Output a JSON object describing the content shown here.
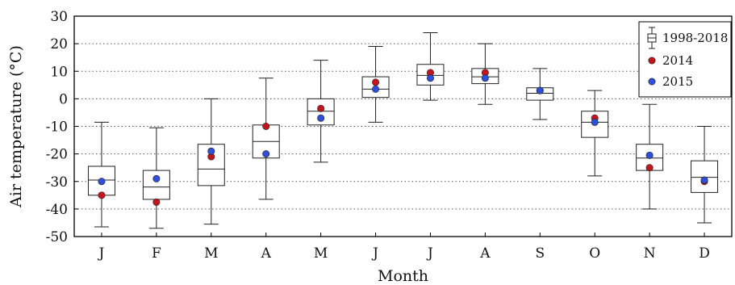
{
  "chart_data": {
    "type": "box",
    "title": "",
    "xlabel": "Month",
    "ylabel": "Air temperature (°C)",
    "ylim": [
      -50,
      30
    ],
    "yticks": [
      -50,
      -40,
      -30,
      -20,
      -10,
      0,
      10,
      20,
      30
    ],
    "grid": "horizontal dotted",
    "legend_position": "top-right",
    "categories": [
      "J",
      "F",
      "M",
      "A",
      "M",
      "J",
      "J",
      "A",
      "S",
      "O",
      "N",
      "D"
    ],
    "box_series": {
      "name": "1998-2018",
      "color": "#000000",
      "boxes": [
        {
          "min": -46.5,
          "q1": -35,
          "median": -29.5,
          "q3": -24.5,
          "max": -8.5
        },
        {
          "min": -47,
          "q1": -36.5,
          "median": -32,
          "q3": -26,
          "max": -10.5
        },
        {
          "min": -45.5,
          "q1": -31.5,
          "median": -25.5,
          "q3": -16.5,
          "max": 0
        },
        {
          "min": -36.5,
          "q1": -21.5,
          "median": -15.5,
          "q3": -9.5,
          "max": 7.5
        },
        {
          "min": -23,
          "q1": -9.5,
          "median": -4.5,
          "q3": 0,
          "max": 14
        },
        {
          "min": -8.5,
          "q1": 0.5,
          "median": 3.5,
          "q3": 8,
          "max": 19
        },
        {
          "min": -0.5,
          "q1": 5,
          "median": 8.5,
          "q3": 12.5,
          "max": 24
        },
        {
          "min": -2,
          "q1": 5.5,
          "median": 8,
          "q3": 11,
          "max": 20
        },
        {
          "min": -7.5,
          "q1": -0.5,
          "median": 2,
          "q3": 4,
          "max": 11
        },
        {
          "min": -28,
          "q1": -14,
          "median": -8.5,
          "q3": -4.5,
          "max": 3
        },
        {
          "min": -40,
          "q1": -26,
          "median": -21.5,
          "q3": -16.5,
          "max": -2
        },
        {
          "min": -45,
          "q1": -34,
          "median": -28.5,
          "q3": -22.5,
          "max": -10
        }
      ]
    },
    "point_series": [
      {
        "name": "2014",
        "color": "#c0161c",
        "values": [
          -35,
          -37.5,
          -21,
          -10,
          -3.5,
          6,
          9.5,
          9.5,
          3,
          -7,
          -25,
          -30
        ]
      },
      {
        "name": "2015",
        "color": "#2f4fd8",
        "values": [
          -30,
          -29,
          -19,
          -20,
          -7,
          3.5,
          7.5,
          7.5,
          3,
          -8.5,
          -20.5,
          -29.5
        ]
      }
    ]
  }
}
